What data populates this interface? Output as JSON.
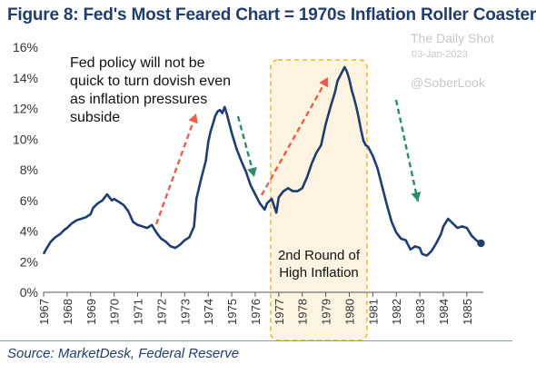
{
  "header": {
    "title": "Figure 8: Fed's Most Feared Chart = 1970s Inflation Roller Coaster"
  },
  "watermark": {
    "publisher": "The Daily Shot",
    "date": "03-Jan-2023",
    "handle": "@SoberLook"
  },
  "footer": {
    "source": "Source: MarketDesk, Federal Reserve"
  },
  "colors": {
    "line": "#1f3d6e",
    "title": "#1f3d6e",
    "up_arrow": "#e8604c",
    "down_arrow": "#2e8b6a",
    "highlight_fill": "#fdf3e1",
    "highlight_border": "#f0b429"
  },
  "chart_data": {
    "type": "line",
    "ylim": [
      0,
      16
    ],
    "yticks": [
      0,
      2,
      4,
      6,
      8,
      10,
      12,
      14,
      16
    ],
    "ytick_labels": [
      "0%",
      "2%",
      "4%",
      "6%",
      "8%",
      "10%",
      "12%",
      "14%",
      "16%"
    ],
    "xlim": [
      1967.0,
      1985.7
    ],
    "xticks": [
      1967,
      1968,
      1969,
      1970,
      1971,
      1972,
      1973,
      1974,
      1975,
      1976,
      1977,
      1978,
      1979,
      1980,
      1981,
      1982,
      1983,
      1984,
      1985
    ],
    "xtick_labels": [
      "1967",
      "1968",
      "1969",
      "1970",
      "1971",
      "1972",
      "1973",
      "1974",
      "1975",
      "1976",
      "1977",
      "1978",
      "1979",
      "1980",
      "1981",
      "1982",
      "1983",
      "1984",
      "1985"
    ],
    "grid": false,
    "series": [
      {
        "x": [
          1967.0,
          1967.1,
          1967.3,
          1967.5,
          1967.7,
          1967.9,
          1968.0,
          1968.2,
          1968.4,
          1968.6,
          1968.8,
          1969.0,
          1969.1,
          1969.3,
          1969.5,
          1969.7,
          1969.9,
          1970.0,
          1970.2,
          1970.4,
          1970.6,
          1970.8,
          1971.0,
          1971.2,
          1971.4,
          1971.6,
          1971.8,
          1972.0,
          1972.2,
          1972.4,
          1972.6,
          1972.8,
          1973.0,
          1973.2,
          1973.4,
          1973.5,
          1973.7,
          1973.9,
          1974.0,
          1974.1,
          1974.2,
          1974.3,
          1974.4,
          1974.5,
          1974.6,
          1974.7,
          1974.8,
          1975.0,
          1975.2,
          1975.4,
          1975.6,
          1975.8,
          1976.0,
          1976.1,
          1976.2,
          1976.3,
          1976.4,
          1976.5,
          1976.7,
          1976.9,
          1977.0,
          1977.2,
          1977.4,
          1977.6,
          1977.8,
          1978.0,
          1978.2,
          1978.4,
          1978.6,
          1978.8,
          1979.0,
          1979.2,
          1979.4,
          1979.5,
          1979.6,
          1979.7,
          1979.8,
          1979.9,
          1980.0,
          1980.1,
          1980.2,
          1980.3,
          1980.4,
          1980.5,
          1980.6,
          1980.7,
          1980.8,
          1981.0,
          1981.2,
          1981.4,
          1981.6,
          1981.8,
          1982.0,
          1982.2,
          1982.4,
          1982.6,
          1982.8,
          1983.0,
          1983.1,
          1983.3,
          1983.5,
          1983.7,
          1983.9,
          1984.0,
          1984.2,
          1984.4,
          1984.6,
          1984.8,
          1985.0,
          1985.2,
          1985.4,
          1985.6
        ],
        "values": [
          2.5,
          2.8,
          3.3,
          3.6,
          3.8,
          4.1,
          4.2,
          4.5,
          4.7,
          4.8,
          4.9,
          5.1,
          5.5,
          5.8,
          6.0,
          6.4,
          6.0,
          6.1,
          5.9,
          5.7,
          5.3,
          4.6,
          4.4,
          4.3,
          4.2,
          4.4,
          3.9,
          3.5,
          3.3,
          3.0,
          2.9,
          3.1,
          3.4,
          3.6,
          4.3,
          6.1,
          7.4,
          8.6,
          9.8,
          10.5,
          11.0,
          11.5,
          11.8,
          11.9,
          11.7,
          12.1,
          11.6,
          10.4,
          9.4,
          8.6,
          7.9,
          7.0,
          6.4,
          6.1,
          5.8,
          5.6,
          5.4,
          5.8,
          6.1,
          5.2,
          6.2,
          6.6,
          6.8,
          6.6,
          6.6,
          6.8,
          7.5,
          8.4,
          9.1,
          9.6,
          11.0,
          12.1,
          13.1,
          13.8,
          14.1,
          14.4,
          14.7,
          14.4,
          13.9,
          13.2,
          12.7,
          12.1,
          11.4,
          10.6,
          9.9,
          9.6,
          9.5,
          8.9,
          8.1,
          6.9,
          5.7,
          4.6,
          3.9,
          3.5,
          3.4,
          2.8,
          3.0,
          2.9,
          2.5,
          2.4,
          2.7,
          3.2,
          3.8,
          4.3,
          4.8,
          4.5,
          4.2,
          4.3,
          4.2,
          3.7,
          3.4,
          3.2
        ]
      }
    ],
    "annotations": [
      {
        "text_lines": [
          "Fed policy will not be",
          "quick to turn dovish even",
          "as inflation pressures",
          "subside"
        ]
      },
      {
        "text_lines": [
          "2nd Round of",
          "High Inflation"
        ]
      }
    ]
  }
}
